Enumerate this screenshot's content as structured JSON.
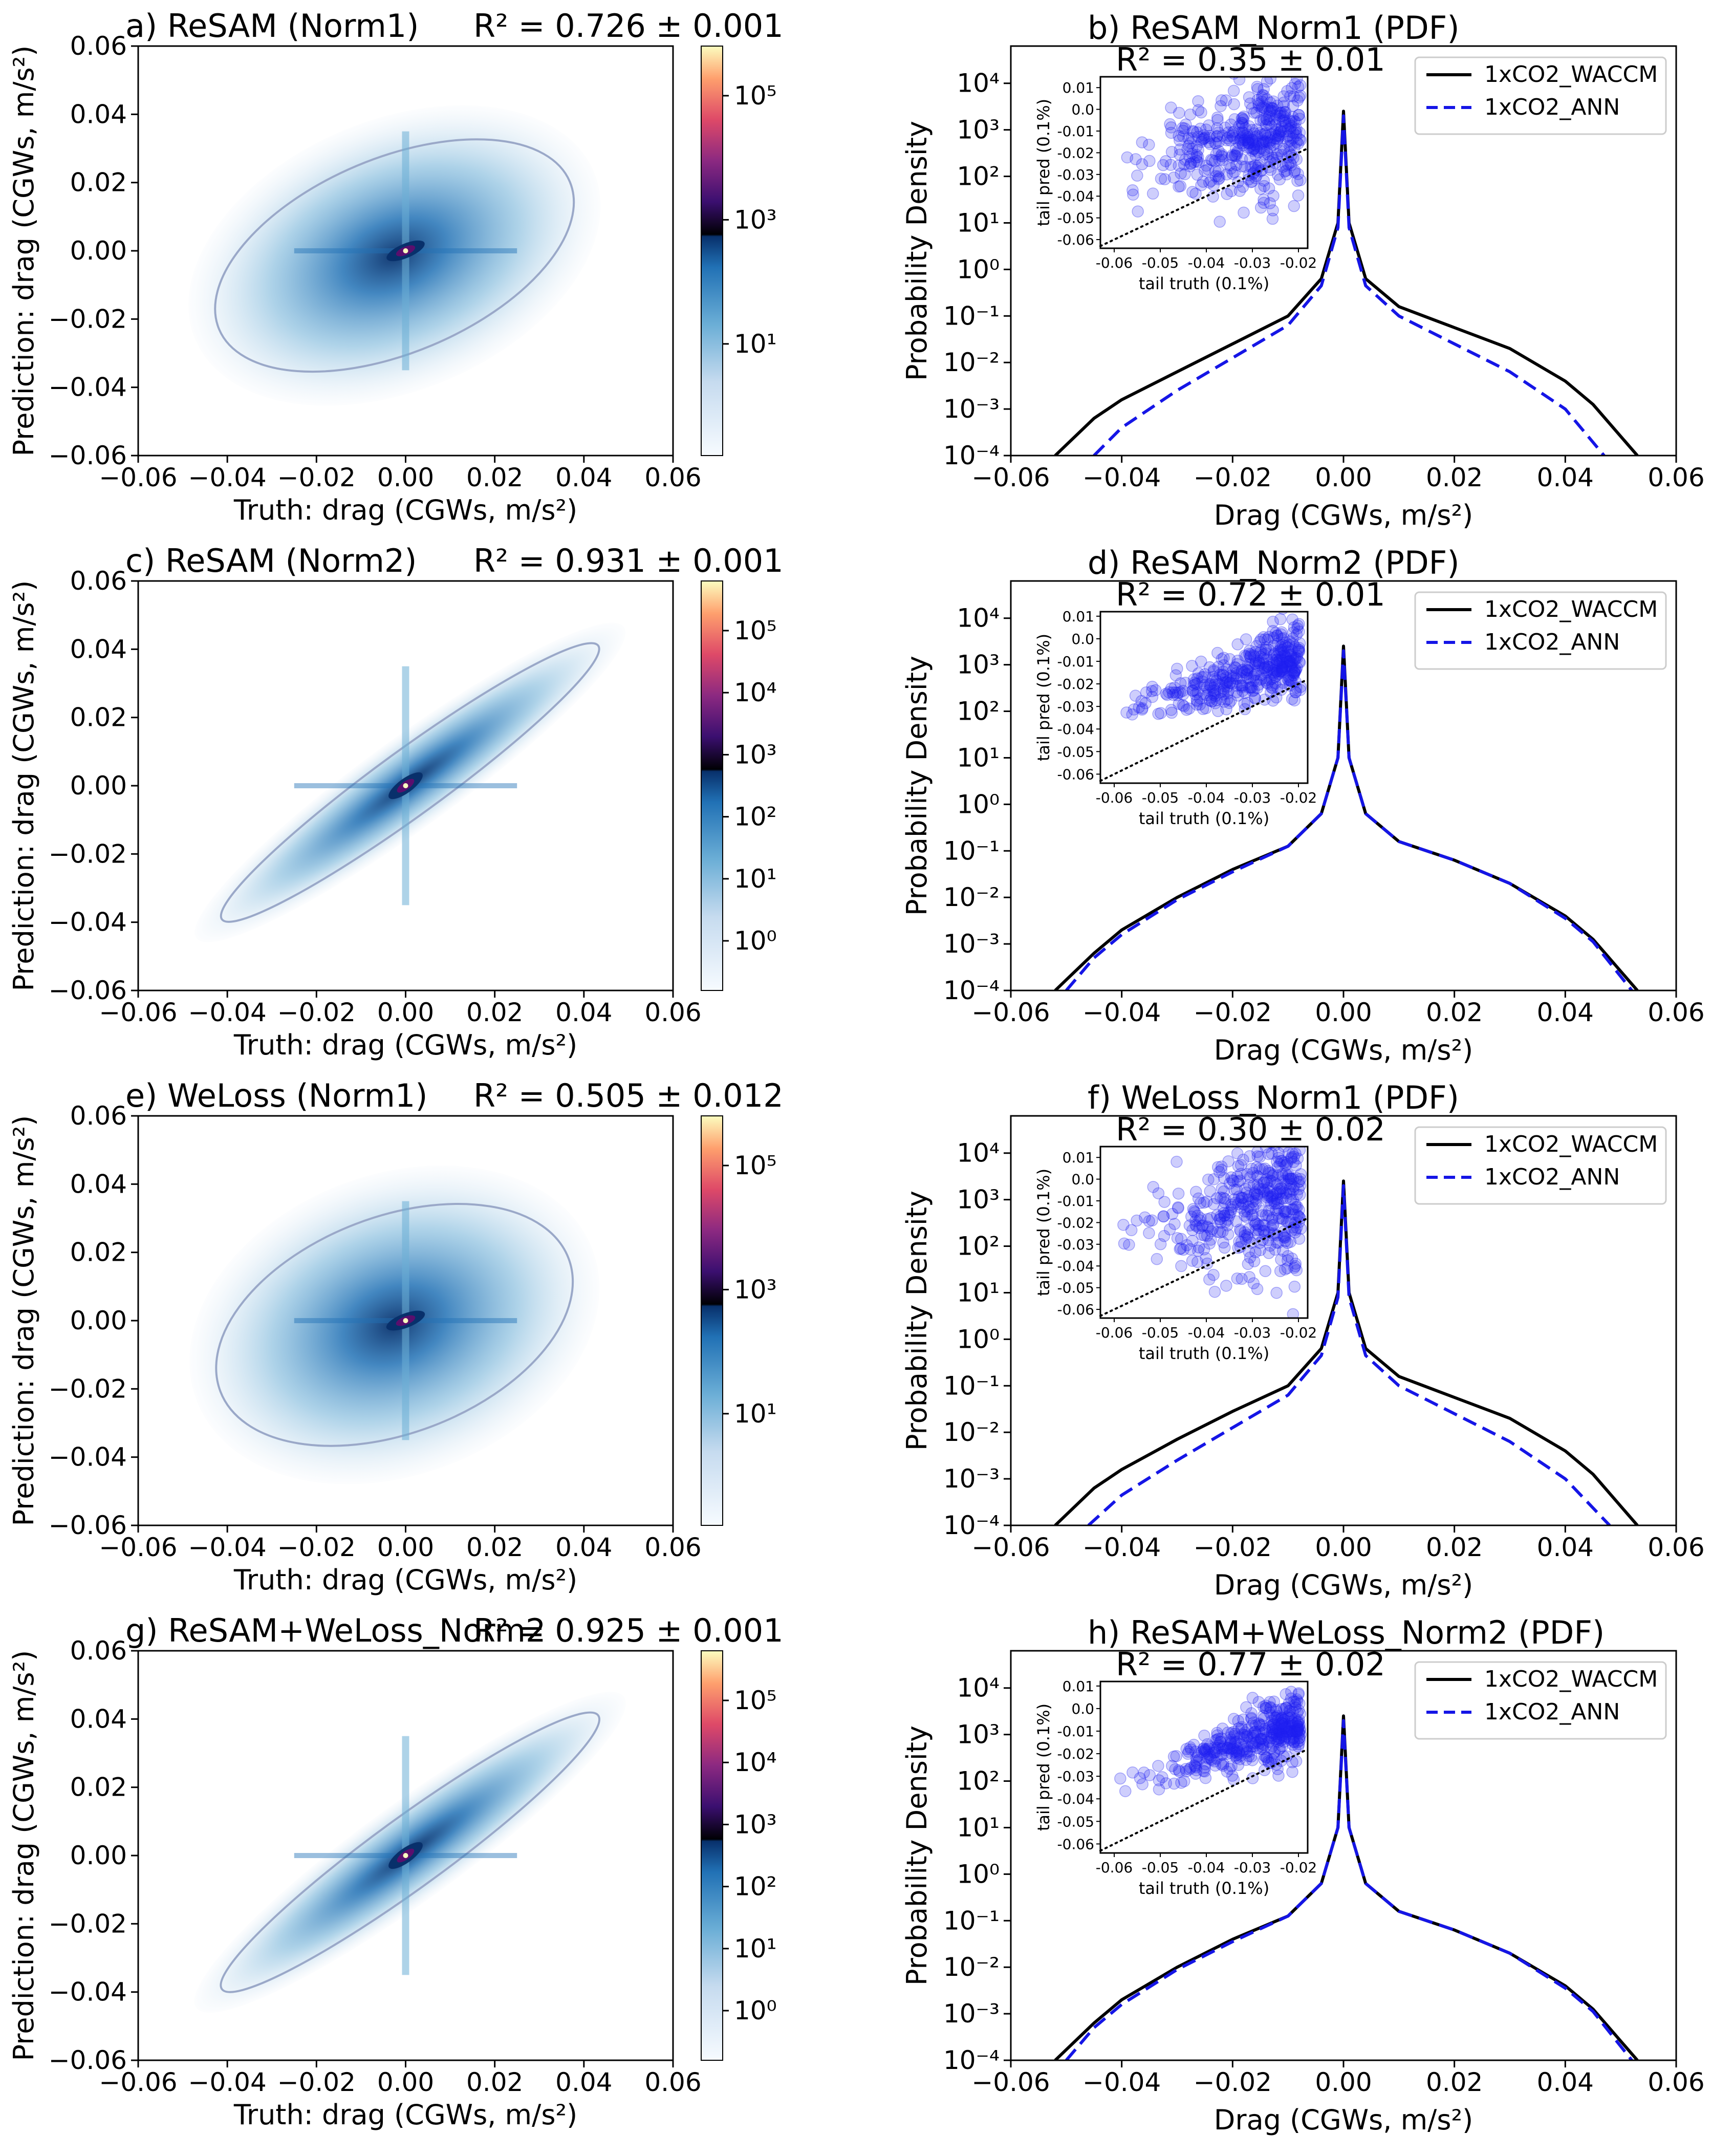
{
  "chart_data": [
    {
      "id": "a",
      "type": "heatmap",
      "title": "a) ReSAM (Norm1)",
      "r2": "R² = 0.726 ± 0.001",
      "xlabel": "Truth: drag (CGWs, m/s²)",
      "ylabel": "Prediction: drag (CGWs, m/s²)",
      "xlim": [
        -0.06,
        0.06
      ],
      "ylim": [
        -0.06,
        0.06
      ],
      "xticks": [
        "−0.06",
        "−0.04",
        "−0.02",
        "0.00",
        "0.02",
        "0.04",
        "0.06"
      ],
      "yticks": [
        "−0.06",
        "−0.04",
        "−0.02",
        "0.00",
        "0.02",
        "0.04",
        "0.06"
      ],
      "cbar_ticks": [
        {
          "exp": 1,
          "label": "10¹"
        },
        {
          "exp": 3,
          "label": "10³"
        },
        {
          "exp": 5,
          "label": "10⁵"
        }
      ],
      "cloud": {
        "slope": 0.55,
        "spread": 0.018,
        "xmin": -0.045,
        "xmax": 0.04
      }
    },
    {
      "id": "b",
      "type": "line",
      "title": "b) ReSAM_Norm1 (PDF)",
      "xlabel": "Drag (CGWs, m/s²)",
      "ylabel": "Probability Density",
      "xlim": [
        -0.06,
        0.06
      ],
      "ylim": [
        0.0001,
        100000
      ],
      "xticks": [
        "−0.06",
        "−0.04",
        "−0.02",
        "0.00",
        "0.02",
        "0.04",
        "0.06"
      ],
      "yticks": [
        "10⁻⁴",
        "10⁻³",
        "10⁻²",
        "10⁻¹",
        "10⁰",
        "10¹",
        "10²",
        "10³",
        "10⁴"
      ],
      "legend": [
        "1xCO2_WACCM",
        "1xCO2_ANN"
      ],
      "series": [
        {
          "name": "1xCO2_WACCM",
          "color": "#000000",
          "x": [
            -0.052,
            -0.045,
            -0.04,
            -0.03,
            -0.02,
            -0.01,
            -0.004,
            -0.001,
            0.0,
            0.001,
            0.004,
            0.01,
            0.02,
            0.03,
            0.04,
            0.045,
            0.053
          ],
          "logy": [
            -4.0,
            -3.2,
            -2.8,
            -2.2,
            -1.6,
            -1.0,
            -0.2,
            1.0,
            3.4,
            1.0,
            -0.2,
            -0.8,
            -1.25,
            -1.7,
            -2.4,
            -2.9,
            -4.0
          ]
        },
        {
          "name": "1xCO2_ANN",
          "color": "#1515e6",
          "x": [
            -0.045,
            -0.04,
            -0.03,
            -0.02,
            -0.01,
            -0.004,
            -0.001,
            0.0,
            0.001,
            0.004,
            0.01,
            0.02,
            0.03,
            0.04,
            0.047
          ],
          "logy": [
            -4.0,
            -3.4,
            -2.6,
            -1.9,
            -1.2,
            -0.35,
            0.9,
            3.3,
            0.9,
            -0.35,
            -1.0,
            -1.6,
            -2.2,
            -3.0,
            -4.0
          ]
        }
      ],
      "inset": {
        "title": "R² = 0.35 ± 0.01",
        "xlabel": "tail truth (0.1%)",
        "ylabel": "tail pred (0.1%)",
        "xlim": [
          -0.063,
          -0.018
        ],
        "ylim": [
          -0.064,
          0.015
        ],
        "xticks": [
          "-0.06",
          "-0.05",
          "-0.04",
          "-0.03",
          "-0.02"
        ],
        "yticks": [
          "-0.06",
          "-0.05",
          "-0.04",
          "-0.03",
          "-0.02",
          "-0.01",
          "0.0",
          "0.01"
        ],
        "cloud": {
          "slope": 0.45,
          "intercept": -0.01,
          "spread": 0.013,
          "n": 420
        }
      }
    },
    {
      "id": "c",
      "type": "heatmap",
      "title": "c) ReSAM (Norm2)",
      "r2": "R² = 0.931 ± 0.001",
      "xlabel": "Truth: drag (CGWs, m/s²)",
      "ylabel": "Prediction: drag (CGWs, m/s²)",
      "xlim": [
        -0.06,
        0.06
      ],
      "ylim": [
        -0.06,
        0.06
      ],
      "xticks": [
        "−0.06",
        "−0.04",
        "−0.02",
        "0.00",
        "0.02",
        "0.04",
        "0.06"
      ],
      "yticks": [
        "−0.06",
        "−0.04",
        "−0.02",
        "0.00",
        "0.02",
        "0.04",
        "0.06"
      ],
      "cbar_ticks": [
        {
          "exp": 0,
          "label": "10⁰"
        },
        {
          "exp": 1,
          "label": "10¹"
        },
        {
          "exp": 2,
          "label": "10²"
        },
        {
          "exp": 3,
          "label": "10³"
        },
        {
          "exp": 4,
          "label": "10⁴"
        },
        {
          "exp": 5,
          "label": "10⁵"
        }
      ],
      "cloud": {
        "slope": 0.95,
        "spread": 0.006,
        "xmin": -0.042,
        "xmax": 0.044
      }
    },
    {
      "id": "d",
      "type": "line",
      "title": "d) ReSAM_Norm2 (PDF)",
      "xlabel": "Drag (CGWs, m/s²)",
      "ylabel": "Probability Density",
      "xlim": [
        -0.06,
        0.06
      ],
      "ylim": [
        0.0001,
        100000
      ],
      "xticks": [
        "−0.06",
        "−0.04",
        "−0.02",
        "0.00",
        "0.02",
        "0.04",
        "0.06"
      ],
      "yticks": [
        "10⁻⁴",
        "10⁻³",
        "10⁻²",
        "10⁻¹",
        "10⁰",
        "10¹",
        "10²",
        "10³",
        "10⁴"
      ],
      "legend": [
        "1xCO2_WACCM",
        "1xCO2_ANN"
      ],
      "series": [
        {
          "name": "1xCO2_WACCM",
          "color": "#000000",
          "x": [
            -0.052,
            -0.045,
            -0.04,
            -0.03,
            -0.02,
            -0.01,
            -0.004,
            -0.001,
            0.0,
            0.001,
            0.004,
            0.01,
            0.02,
            0.03,
            0.04,
            0.045,
            0.053
          ],
          "logy": [
            -4.0,
            -3.2,
            -2.7,
            -2.0,
            -1.4,
            -0.9,
            -0.2,
            1.0,
            3.4,
            1.0,
            -0.2,
            -0.8,
            -1.2,
            -1.7,
            -2.4,
            -2.9,
            -4.0
          ]
        },
        {
          "name": "1xCO2_ANN",
          "color": "#1515e6",
          "x": [
            -0.05,
            -0.045,
            -0.04,
            -0.03,
            -0.02,
            -0.01,
            -0.004,
            -0.001,
            0.0,
            0.001,
            0.004,
            0.01,
            0.02,
            0.03,
            0.04,
            0.045,
            0.052
          ],
          "logy": [
            -4.0,
            -3.3,
            -2.8,
            -2.05,
            -1.45,
            -0.9,
            -0.2,
            1.0,
            3.3,
            1.0,
            -0.2,
            -0.8,
            -1.2,
            -1.7,
            -2.45,
            -2.95,
            -4.0
          ]
        }
      ],
      "inset": {
        "title": "R² = 0.72 ± 0.01",
        "xlabel": "tail truth (0.1%)",
        "ylabel": "tail pred (0.1%)",
        "xlim": [
          -0.063,
          -0.018
        ],
        "ylim": [
          -0.064,
          0.012
        ],
        "xticks": [
          "-0.06",
          "-0.05",
          "-0.04",
          "-0.03",
          "-0.02"
        ],
        "yticks": [
          "-0.06",
          "-0.05",
          "-0.04",
          "-0.03",
          "-0.02",
          "-0.01",
          "0.0",
          "0.01"
        ],
        "cloud": {
          "slope": 0.65,
          "intercept": -0.008,
          "spread": 0.007,
          "n": 380
        }
      }
    },
    {
      "id": "e",
      "type": "heatmap",
      "title": "e) WeLoss (Norm1)",
      "r2": "R² = 0.505 ± 0.012",
      "xlabel": "Truth: drag (CGWs, m/s²)",
      "ylabel": "Prediction: drag (CGWs, m/s²)",
      "xlim": [
        -0.06,
        0.06
      ],
      "ylim": [
        -0.06,
        0.06
      ],
      "xticks": [
        "−0.06",
        "−0.04",
        "−0.02",
        "0.00",
        "0.02",
        "0.04",
        "0.06"
      ],
      "yticks": [
        "−0.06",
        "−0.04",
        "−0.02",
        "0.00",
        "0.02",
        "0.04",
        "0.06"
      ],
      "cbar_ticks": [
        {
          "exp": 1,
          "label": "10¹"
        },
        {
          "exp": 3,
          "label": "10³"
        },
        {
          "exp": 5,
          "label": "10⁵"
        }
      ],
      "cloud": {
        "slope": 0.5,
        "spread": 0.02,
        "xmin": -0.045,
        "xmax": 0.04
      }
    },
    {
      "id": "f",
      "type": "line",
      "title": "f) WeLoss_Norm1 (PDF)",
      "xlabel": "Drag (CGWs, m/s²)",
      "ylabel": "Probability Density",
      "xlim": [
        -0.06,
        0.06
      ],
      "ylim": [
        0.0001,
        100000
      ],
      "xticks": [
        "−0.06",
        "−0.04",
        "−0.02",
        "0.00",
        "0.02",
        "0.04",
        "0.06"
      ],
      "yticks": [
        "10⁻⁴",
        "10⁻³",
        "10⁻²",
        "10⁻¹",
        "10⁰",
        "10¹",
        "10²",
        "10³",
        "10⁴"
      ],
      "legend": [
        "1xCO2_WACCM",
        "1xCO2_ANN"
      ],
      "series": [
        {
          "name": "1xCO2_WACCM",
          "color": "#000000",
          "x": [
            -0.052,
            -0.045,
            -0.04,
            -0.03,
            -0.02,
            -0.01,
            -0.004,
            -0.001,
            0.0,
            0.001,
            0.004,
            0.01,
            0.02,
            0.03,
            0.04,
            0.045,
            0.053
          ],
          "logy": [
            -4.0,
            -3.2,
            -2.8,
            -2.15,
            -1.55,
            -1.0,
            -0.2,
            1.0,
            3.4,
            1.0,
            -0.2,
            -0.8,
            -1.25,
            -1.7,
            -2.4,
            -2.9,
            -4.0
          ]
        },
        {
          "name": "1xCO2_ANN",
          "color": "#1515e6",
          "x": [
            -0.046,
            -0.04,
            -0.03,
            -0.02,
            -0.01,
            -0.004,
            -0.001,
            0.0,
            0.001,
            0.004,
            0.01,
            0.02,
            0.03,
            0.04,
            0.048
          ],
          "logy": [
            -4.0,
            -3.35,
            -2.6,
            -1.9,
            -1.2,
            -0.35,
            0.9,
            3.3,
            0.9,
            -0.35,
            -1.0,
            -1.6,
            -2.2,
            -3.0,
            -4.0
          ]
        }
      ],
      "inset": {
        "title": "R² = 0.30 ± 0.02",
        "xlabel": "tail truth (0.1%)",
        "ylabel": "tail pred (0.1%)",
        "xlim": [
          -0.063,
          -0.018
        ],
        "ylim": [
          -0.064,
          0.015
        ],
        "xticks": [
          "-0.06",
          "-0.05",
          "-0.04",
          "-0.03",
          "-0.02"
        ],
        "yticks": [
          "-0.06",
          "-0.05",
          "-0.04",
          "-0.03",
          "-0.02",
          "-0.01",
          "0.0",
          "0.01"
        ],
        "cloud": {
          "slope": 0.4,
          "intercept": -0.01,
          "spread": 0.015,
          "n": 420
        }
      }
    },
    {
      "id": "g",
      "type": "heatmap",
      "title": "g) ReSAM+WeLoss_Norm2",
      "r2": "R² = 0.925 ± 0.001",
      "xlabel": "Truth: drag (CGWs, m/s²)",
      "ylabel": "Prediction: drag (CGWs, m/s²)",
      "xlim": [
        -0.06,
        0.06
      ],
      "ylim": [
        -0.06,
        0.06
      ],
      "xticks": [
        "−0.06",
        "−0.04",
        "−0.02",
        "0.00",
        "0.02",
        "0.04",
        "0.06"
      ],
      "yticks": [
        "−0.06",
        "−0.04",
        "−0.02",
        "0.00",
        "0.02",
        "0.04",
        "0.06"
      ],
      "cbar_ticks": [
        {
          "exp": 0,
          "label": "10⁰"
        },
        {
          "exp": 1,
          "label": "10¹"
        },
        {
          "exp": 2,
          "label": "10²"
        },
        {
          "exp": 3,
          "label": "10³"
        },
        {
          "exp": 4,
          "label": "10⁴"
        },
        {
          "exp": 5,
          "label": "10⁵"
        }
      ],
      "cloud": {
        "slope": 0.95,
        "spread": 0.0065,
        "xmin": -0.042,
        "xmax": 0.044
      }
    },
    {
      "id": "h",
      "type": "line",
      "title": "h) ReSAM+WeLoss_Norm2 (PDF)",
      "xlabel": "Drag (CGWs, m/s²)",
      "ylabel": "Probability Density",
      "xlim": [
        -0.06,
        0.06
      ],
      "ylim": [
        0.0001,
        100000
      ],
      "xticks": [
        "−0.06",
        "−0.04",
        "−0.02",
        "0.00",
        "0.02",
        "0.04",
        "0.06"
      ],
      "yticks": [
        "10⁻⁴",
        "10⁻³",
        "10⁻²",
        "10⁻¹",
        "10⁰",
        "10¹",
        "10²",
        "10³",
        "10⁴"
      ],
      "legend": [
        "1xCO2_WACCM",
        "1xCO2_ANN"
      ],
      "series": [
        {
          "name": "1xCO2_WACCM",
          "color": "#000000",
          "x": [
            -0.052,
            -0.045,
            -0.04,
            -0.03,
            -0.02,
            -0.01,
            -0.004,
            -0.001,
            0.0,
            0.001,
            0.004,
            0.01,
            0.02,
            0.03,
            0.04,
            0.045,
            0.053
          ],
          "logy": [
            -4.0,
            -3.2,
            -2.7,
            -2.0,
            -1.4,
            -0.9,
            -0.2,
            1.0,
            3.4,
            1.0,
            -0.2,
            -0.8,
            -1.2,
            -1.7,
            -2.4,
            -2.9,
            -4.0
          ]
        },
        {
          "name": "1xCO2_ANN",
          "color": "#1515e6",
          "x": [
            -0.05,
            -0.045,
            -0.04,
            -0.03,
            -0.02,
            -0.01,
            -0.004,
            -0.001,
            0.0,
            0.001,
            0.004,
            0.01,
            0.02,
            0.03,
            0.04,
            0.045,
            0.052
          ],
          "logy": [
            -4.0,
            -3.3,
            -2.8,
            -2.05,
            -1.45,
            -0.9,
            -0.2,
            1.0,
            3.3,
            1.0,
            -0.2,
            -0.8,
            -1.2,
            -1.7,
            -2.45,
            -2.95,
            -4.0
          ]
        }
      ],
      "inset": {
        "title": "R² = 0.77 ± 0.02",
        "xlabel": "tail truth (0.1%)",
        "ylabel": "tail pred (0.1%)",
        "xlim": [
          -0.063,
          -0.018
        ],
        "ylim": [
          -0.064,
          0.012
        ],
        "xticks": [
          "-0.06",
          "-0.05",
          "-0.04",
          "-0.03",
          "-0.02"
        ],
        "yticks": [
          "-0.06",
          "-0.05",
          "-0.04",
          "-0.03",
          "-0.02",
          "-0.01",
          "0.0",
          "0.01"
        ],
        "cloud": {
          "slope": 0.7,
          "intercept": -0.007,
          "spread": 0.006,
          "n": 380
        }
      }
    }
  ]
}
